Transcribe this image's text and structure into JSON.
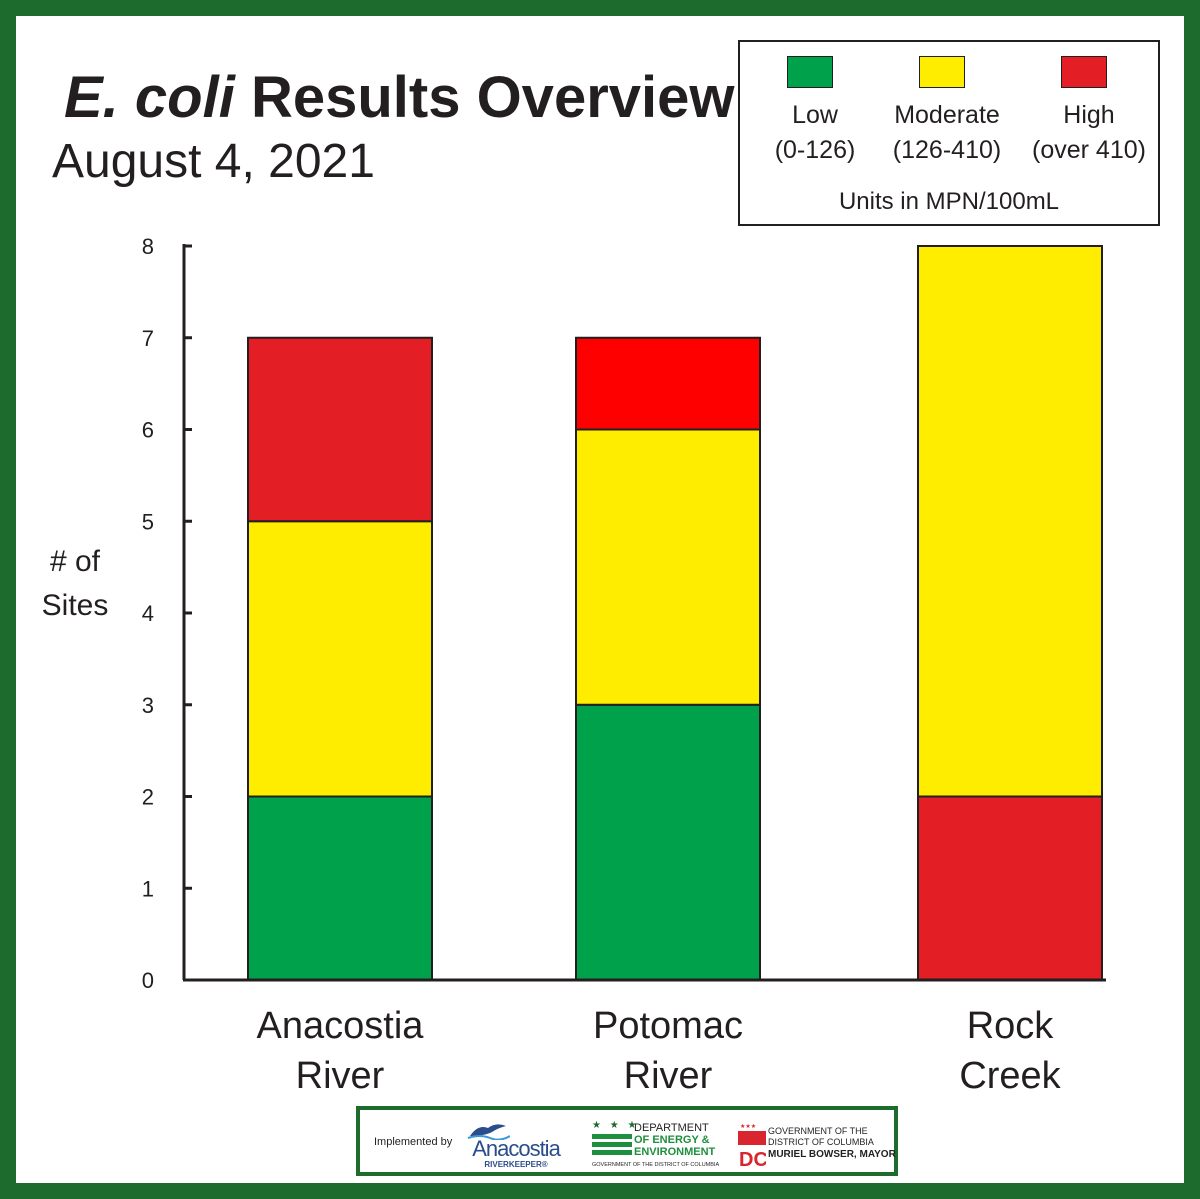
{
  "colors": {
    "border": "#1e6b2e",
    "low": "#00a14b",
    "moderate": "#ffed00",
    "high_anacostia": "#e31e24",
    "high_potomac": "#ff0000",
    "high_rockcreek": "#e31e24",
    "text": "#231f20"
  },
  "legend": {
    "items": [
      {
        "name": "Low",
        "range": "(0-126)",
        "color": "#00a14b"
      },
      {
        "name": "Moderate",
        "range": "(126-410)",
        "color": "#ffed00"
      },
      {
        "name": "High",
        "range": "(over 410)",
        "color": "#e31e24"
      }
    ],
    "units": "Units in MPN/100mL"
  },
  "chart_data": {
    "type": "bar",
    "stacked": true,
    "title": "E. coli Results Overview",
    "title_italic_part": "E. coli",
    "title_rest": " Results Overview",
    "subtitle": "August 4, 2021",
    "ylabel": "# of Sites",
    "ylabel_lines": [
      "# of",
      "Sites"
    ],
    "xlabel": "",
    "ylim": [
      0,
      8
    ],
    "yticks": [
      0,
      1,
      2,
      3,
      4,
      5,
      6,
      7,
      8
    ],
    "grid": false,
    "legend_position": "top-right",
    "categories": [
      "Anacostia River",
      "Potomac River",
      "Rock Creek"
    ],
    "category_lines": [
      [
        "Anacostia",
        "River"
      ],
      [
        "Potomac",
        "River"
      ],
      [
        "Rock",
        "Creek"
      ]
    ],
    "series": [
      {
        "name": "Low",
        "color": "#00a14b",
        "values": [
          2,
          3,
          0
        ]
      },
      {
        "name": "Moderate",
        "color": "#ffed00",
        "values": [
          3,
          3,
          6
        ]
      },
      {
        "name": "High",
        "color": "#e31e24",
        "values": [
          2,
          1,
          2
        ]
      }
    ],
    "stacks": [
      [
        {
          "series": "Low",
          "value": 2,
          "color": "#00a14b"
        },
        {
          "series": "Moderate",
          "value": 3,
          "color": "#ffed00"
        },
        {
          "series": "High",
          "value": 2,
          "color": "#e31e24"
        }
      ],
      [
        {
          "series": "Low",
          "value": 3,
          "color": "#00a14b"
        },
        {
          "series": "Moderate",
          "value": 3,
          "color": "#ffed00"
        },
        {
          "series": "High",
          "value": 1,
          "color": "#ff0000"
        }
      ],
      [
        {
          "series": "High",
          "value": 2,
          "color": "#e31e24"
        },
        {
          "series": "Moderate",
          "value": 6,
          "color": "#ffed00"
        }
      ]
    ]
  },
  "footer": {
    "implemented_by": "Implemented by",
    "anacostia_name": "Anacostia",
    "anacostia_sub": "RIVERKEEPER®",
    "doee_stars": "★ ★ ★",
    "doee_line1": "DEPARTMENT",
    "doee_line2": "OF ENERGY &",
    "doee_line3": "ENVIRONMENT",
    "doee_line4": "GOVERNMENT OF THE DISTRICT OF COLUMBIA",
    "dc_line1": "GOVERNMENT OF THE",
    "dc_line2": "DISTRICT OF COLUMBIA",
    "dc_line3": "MURIEL BOWSER, MAYOR"
  }
}
